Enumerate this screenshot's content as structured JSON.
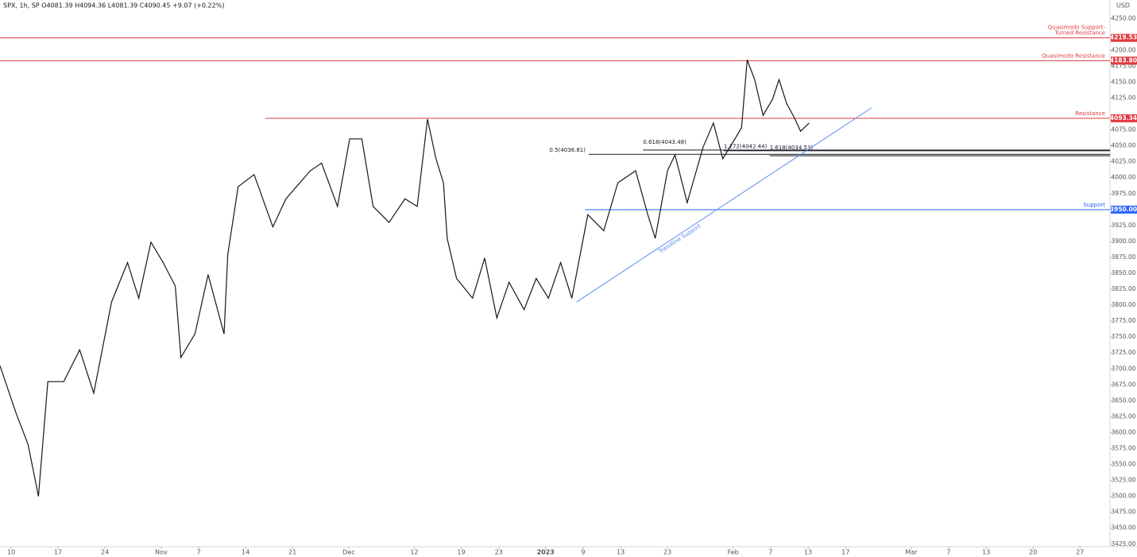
{
  "chart_data": {
    "type": "line",
    "header": "SPX, 1h, SP O4081.39 H4094.36 L4081.39 C4090.45 +9.07 (+0.22%)",
    "y_unit": "USD",
    "xlim": [
      -1.2,
      117.2
    ],
    "ylim": [
      3421,
      4279
    ],
    "xticks": [
      {
        "value": 0,
        "label": "10"
      },
      {
        "value": 5,
        "label": "17"
      },
      {
        "value": 10,
        "label": "24"
      },
      {
        "value": 16,
        "label": "Nov"
      },
      {
        "value": 20,
        "label": "7"
      },
      {
        "value": 25,
        "label": "14"
      },
      {
        "value": 30,
        "label": "21"
      },
      {
        "value": 36,
        "label": "Dec"
      },
      {
        "value": 43,
        "label": "12"
      },
      {
        "value": 48,
        "label": "19"
      },
      {
        "value": 52,
        "label": "23"
      },
      {
        "value": 57,
        "label": "2023"
      },
      {
        "value": 61,
        "label": "9"
      },
      {
        "value": 65,
        "label": "13"
      },
      {
        "value": 70,
        "label": "23"
      },
      {
        "value": 77,
        "label": "Feb"
      },
      {
        "value": 81,
        "label": "7"
      },
      {
        "value": 85,
        "label": "13"
      },
      {
        "value": 89,
        "label": "17"
      },
      {
        "value": 96,
        "label": "Mar"
      },
      {
        "value": 100,
        "label": "7"
      },
      {
        "value": 104,
        "label": "13"
      },
      {
        "value": 109,
        "label": "20"
      },
      {
        "value": 114,
        "label": "27"
      }
    ],
    "yticks": [
      {
        "value": 3425,
        "label": "3425.00"
      },
      {
        "value": 3450,
        "label": "3450.00"
      },
      {
        "value": 3475,
        "label": "3475.00"
      },
      {
        "value": 3500,
        "label": "3500.00"
      },
      {
        "value": 3525,
        "label": "3525.00"
      },
      {
        "value": 3550,
        "label": "3550.00"
      },
      {
        "value": 3575,
        "label": "3575.00"
      },
      {
        "value": 3600,
        "label": "3600.00"
      },
      {
        "value": 3625,
        "label": "3625.00"
      },
      {
        "value": 3650,
        "label": "3650.00"
      },
      {
        "value": 3675,
        "label": "3675.00"
      },
      {
        "value": 3700,
        "label": "3700.00"
      },
      {
        "value": 3725,
        "label": "3725.00"
      },
      {
        "value": 3750,
        "label": "3750.00"
      },
      {
        "value": 3775,
        "label": "3775.00"
      },
      {
        "value": 3800,
        "label": "3800.00"
      },
      {
        "value": 3825,
        "label": "3825.00"
      },
      {
        "value": 3850,
        "label": "3850.00"
      },
      {
        "value": 3875,
        "label": "3875.00"
      },
      {
        "value": 3900,
        "label": "3900.00"
      },
      {
        "value": 3925,
        "label": "3925.00"
      },
      {
        "value": 3975,
        "label": "3975.00"
      },
      {
        "value": 4000,
        "label": "4000.00"
      },
      {
        "value": 4025,
        "label": "4025.00"
      },
      {
        "value": 4050,
        "label": "4050.00"
      },
      {
        "value": 4075,
        "label": "4075.00"
      },
      {
        "value": 4125,
        "label": "4125.00"
      },
      {
        "value": 4150,
        "label": "4150.00"
      },
      {
        "value": 4175,
        "label": "4175.00"
      },
      {
        "value": 4200,
        "label": "4200.00"
      },
      {
        "value": 4250,
        "label": "4250.00"
      }
    ],
    "series": [
      {
        "color": "#131722",
        "x": [
          -1.2,
          0.5,
          1.8,
          2.9,
          3.9,
          5.6,
          7.3,
          8.8,
          10.7,
          12.4,
          13.6,
          14.9,
          16.2,
          17.5,
          18.1,
          19.6,
          21.0,
          22.7,
          23.1,
          24.2,
          25.9,
          27.9,
          29.3,
          31.9,
          33.1,
          34.8,
          36.1,
          37.4,
          38.6,
          40.3,
          42.0,
          43.3,
          44.4,
          45.3,
          46.1,
          46.5,
          47.5,
          49.2,
          50.5,
          51.8,
          53.1,
          54.7,
          56.0,
          57.3,
          58.6,
          59.8,
          61.5,
          63.2,
          64.7,
          66.6,
          67.9,
          68.7,
          70.0,
          70.8,
          72.1,
          73.8,
          74.9,
          75.9,
          77.2,
          77.9,
          78.5,
          79.3,
          80.2,
          81.2,
          81.9,
          82.7,
          83.6,
          84.2,
          85.1
        ],
        "values": [
          3705,
          3631,
          3581,
          3500,
          3680,
          3680,
          3730,
          3662,
          3805,
          3867,
          3811,
          3899,
          3867,
          3830,
          3718,
          3755,
          3848,
          3755,
          3880,
          3986,
          4005,
          3923,
          3967,
          4011,
          4023,
          3955,
          4061,
          4061,
          3955,
          3930,
          3967,
          3955,
          4092,
          4030,
          3992,
          3905,
          3842,
          3811,
          3874,
          3780,
          3836,
          3793,
          3842,
          3811,
          3867,
          3811,
          3942,
          3917,
          3992,
          4011,
          3942,
          3905,
          4011,
          4036,
          3961,
          4048,
          4086,
          4030,
          4061,
          4079,
          4185,
          4154,
          4098,
          4123,
          4154,
          4117,
          4092,
          4073,
          4086
        ]
      }
    ],
    "levels": [
      {
        "name": [
          "Quasimodo Support-",
          "Turned Resistance"
        ],
        "value": 4219.53,
        "value_label": "4219.53",
        "color": "#e0393e",
        "start": -1.2
      },
      {
        "name": [
          "Quasimodo Resistance"
        ],
        "value": 4183.8,
        "value_label": "4183.80",
        "color": "#e0393e",
        "start": -1.2
      },
      {
        "name": [
          "Resistance"
        ],
        "value": 4093.34,
        "value_label": "4093.34",
        "color": "#e0393e",
        "start": 27.1
      },
      {
        "name": [
          "Support"
        ],
        "value": 3950.0,
        "value_label": "3950.00",
        "color": "#2962ff",
        "start": 61.2
      }
    ],
    "fib_levels": [
      {
        "label": "0.5(4036.81)",
        "value": 4036.81,
        "start": 61.6
      },
      {
        "label": "0.618(4043.48)",
        "value": 4043.48,
        "start": 67.4
      },
      {
        "label": "1.272(4042.44)",
        "value": 4042.44,
        "start": 76.0
      },
      {
        "label": "1.618(4034.53)",
        "value": 4034.53,
        "start": 80.9
      }
    ],
    "trendline": {
      "label": "Trendline Support",
      "x": [
        60.3,
        91.8
      ],
      "values": [
        3805,
        4110
      ],
      "color": "#5b8def"
    }
  }
}
